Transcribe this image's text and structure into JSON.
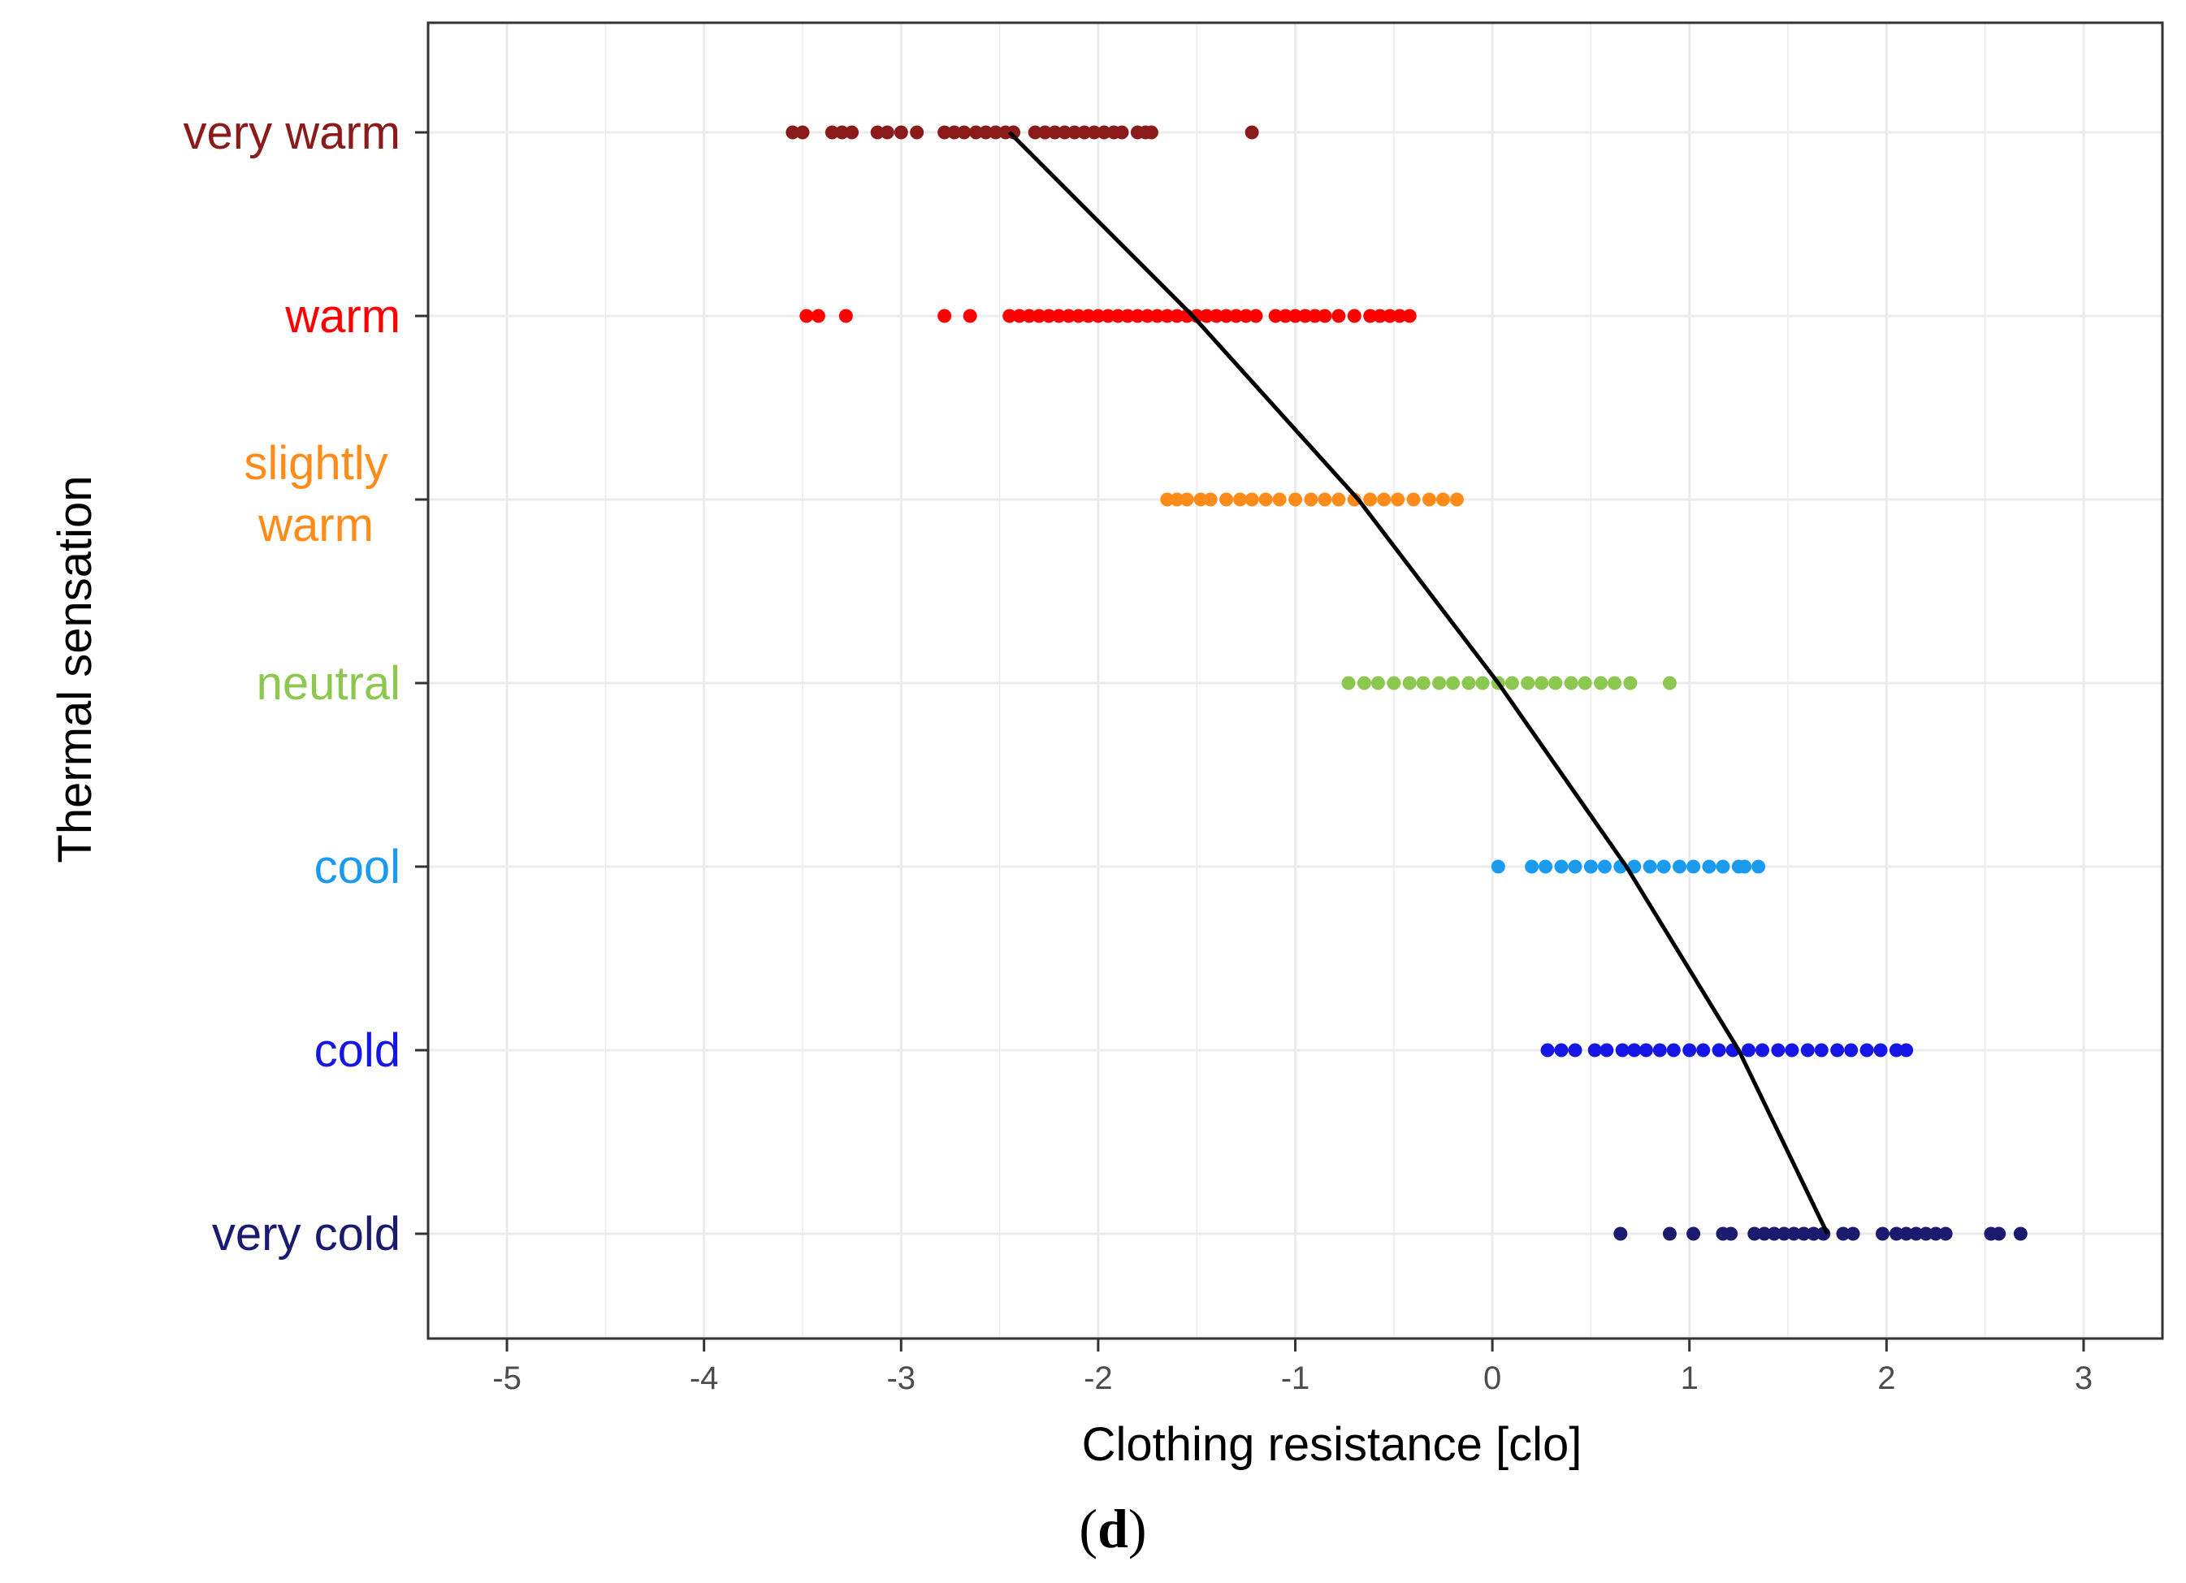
{
  "chart_data": {
    "type": "scatter",
    "xlabel": "Clothing resistance [clo]",
    "ylabel": "Thermal sensation",
    "xlim": [
      -5.4,
      3.4
    ],
    "x_ticks": [
      -5,
      -4,
      -3,
      -2,
      -1,
      0,
      1,
      2,
      3
    ],
    "x_tick_labels": [
      "-5",
      "-4",
      "-3",
      "-2",
      "-1",
      "0",
      "1",
      "2",
      "3"
    ],
    "grid": true,
    "legend": "none",
    "categories": [
      "very warm",
      "warm",
      "slightly warm",
      "neutral",
      "cool",
      "cold",
      "very cold"
    ],
    "category_display": [
      [
        "very warm"
      ],
      [
        "warm"
      ],
      [
        "slightly",
        "warm"
      ],
      [
        "neutral"
      ],
      [
        "cool"
      ],
      [
        "cold"
      ],
      [
        "very cold"
      ]
    ],
    "series": [
      {
        "category": "very warm",
        "color": "#8b1a1a",
        "x": [
          -3.55,
          -3.5,
          -3.35,
          -3.3,
          -3.25,
          -3.12,
          -3.07,
          -3.0,
          -2.92,
          -2.78,
          -2.73,
          -2.68,
          -2.62,
          -2.57,
          -2.52,
          -2.47,
          -2.43,
          -2.32,
          -2.27,
          -2.22,
          -2.17,
          -2.12,
          -2.07,
          -2.02,
          -1.97,
          -1.92,
          -1.88,
          -1.8,
          -1.76,
          -1.73,
          -1.22
        ]
      },
      {
        "category": "warm",
        "color": "#ff0000",
        "x": [
          -3.48,
          -3.42,
          -3.28,
          -2.78,
          -2.65,
          -2.45,
          -2.4,
          -2.35,
          -2.3,
          -2.25,
          -2.2,
          -2.15,
          -2.1,
          -2.05,
          -2.0,
          -1.95,
          -1.9,
          -1.85,
          -1.8,
          -1.75,
          -1.7,
          -1.65,
          -1.6,
          -1.55,
          -1.5,
          -1.45,
          -1.4,
          -1.35,
          -1.3,
          -1.25,
          -1.2,
          -1.1,
          -1.05,
          -1.0,
          -0.95,
          -0.9,
          -0.85,
          -0.78,
          -0.7,
          -0.62,
          -0.57,
          -0.52,
          -0.47,
          -0.42
        ]
      },
      {
        "category": "slightly warm",
        "color": "#ff8c1a",
        "x": [
          -1.65,
          -1.6,
          -1.55,
          -1.48,
          -1.43,
          -1.35,
          -1.28,
          -1.22,
          -1.15,
          -1.08,
          -1.0,
          -0.92,
          -0.85,
          -0.78,
          -0.7,
          -0.62,
          -0.55,
          -0.48,
          -0.4,
          -0.32,
          -0.25,
          -0.18
        ]
      },
      {
        "category": "neutral",
        "color": "#8cc850",
        "x": [
          -0.73,
          -0.65,
          -0.58,
          -0.5,
          -0.42,
          -0.35,
          -0.27,
          -0.2,
          -0.12,
          -0.05,
          0.03,
          0.1,
          0.18,
          0.25,
          0.32,
          0.4,
          0.47,
          0.55,
          0.62,
          0.7,
          0.9
        ]
      },
      {
        "category": "cool",
        "color": "#1a9bf0",
        "x": [
          0.03,
          0.2,
          0.27,
          0.35,
          0.42,
          0.5,
          0.57,
          0.65,
          0.72,
          0.8,
          0.87,
          0.95,
          1.02,
          1.1,
          1.17,
          1.25,
          1.28,
          1.35
        ]
      },
      {
        "category": "cold",
        "color": "#1515e6",
        "x": [
          0.28,
          0.35,
          0.42,
          0.52,
          0.58,
          0.66,
          0.72,
          0.78,
          0.85,
          0.92,
          1.0,
          1.07,
          1.15,
          1.22,
          1.3,
          1.37,
          1.45,
          1.52,
          1.6,
          1.67,
          1.75,
          1.82,
          1.9,
          1.97,
          2.05,
          2.1
        ]
      },
      {
        "category": "very cold",
        "color": "#1a1a6e",
        "x": [
          0.65,
          0.9,
          1.02,
          1.17,
          1.21,
          1.33,
          1.38,
          1.43,
          1.48,
          1.53,
          1.58,
          1.63,
          1.68,
          1.78,
          1.83,
          1.98,
          2.05,
          2.1,
          2.15,
          2.2,
          2.25,
          2.3,
          2.53,
          2.57,
          2.68
        ]
      }
    ],
    "fit_line": {
      "color": "#000000",
      "points": [
        {
          "x": -2.45,
          "category": "very warm"
        },
        {
          "x": -1.52,
          "category": "warm"
        },
        {
          "x": -0.68,
          "category": "slightly warm"
        },
        {
          "x": 0.03,
          "category": "neutral"
        },
        {
          "x": 0.68,
          "category": "cool"
        },
        {
          "x": 1.25,
          "category": "cold"
        },
        {
          "x": 1.7,
          "category": "very cold"
        }
      ]
    },
    "panel_label": {
      "open": "(",
      "letter": "d",
      "close": ")"
    }
  }
}
